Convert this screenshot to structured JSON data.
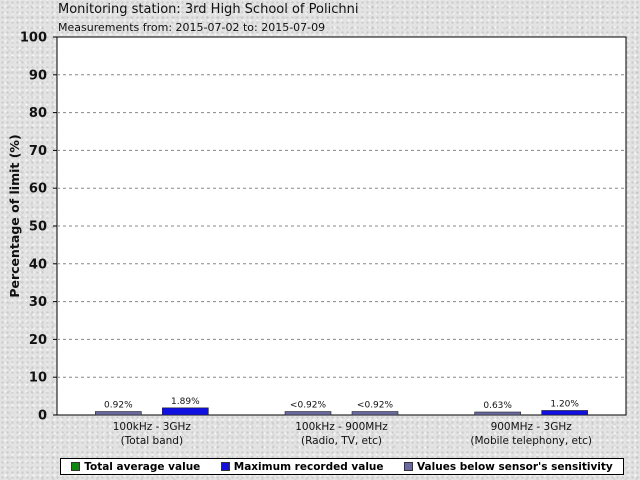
{
  "header": {
    "title": "Monitoring station: 3rd High School of Polichni",
    "subtitle": "Measurements from: 2015-07-02 to: 2015-07-09"
  },
  "chart_data": {
    "type": "bar",
    "title": "Monitoring station: 3rd High School of Polichni",
    "ylabel": "Percentage of limit (%)",
    "xlabel": "",
    "ylim": [
      0,
      100
    ],
    "yticks": [
      0,
      10,
      20,
      30,
      40,
      50,
      60,
      70,
      80,
      90,
      100
    ],
    "grid": true,
    "legend_position": "bottom",
    "categories": [
      [
        "100kHz - 3GHz",
        "(Total band)"
      ],
      [
        "100kHz - 900MHz",
        "(Radio, TV, etc)"
      ],
      [
        "900MHz - 3GHz",
        "(Mobile telephony, etc)"
      ]
    ],
    "series": [
      {
        "name": "Total average value",
        "color": "#0b8a0b",
        "values": [
          0.92,
          0.92,
          0.63
        ]
      },
      {
        "name": "Maximum recorded value",
        "color": "#1010e0",
        "values": [
          1.89,
          0.92,
          1.2
        ]
      },
      {
        "name": "Values below sensor's sensitivity",
        "color": "#6a6aa0",
        "values": null
      }
    ],
    "bars": [
      {
        "category": 0,
        "slot": 0,
        "value": 0.92,
        "label": "0.92%",
        "color": "#6a6aa0"
      },
      {
        "category": 0,
        "slot": 1,
        "value": 1.89,
        "label": "1.89%",
        "color": "#1010e0"
      },
      {
        "category": 1,
        "slot": 0,
        "value": 0.92,
        "label": "<0.92%",
        "color": "#6a6aa0"
      },
      {
        "category": 1,
        "slot": 1,
        "value": 0.92,
        "label": "<0.92%",
        "color": "#6a6aa0"
      },
      {
        "category": 2,
        "slot": 0,
        "value": 0.63,
        "label": "0.63%",
        "color": "#6a6aa0"
      },
      {
        "category": 2,
        "slot": 1,
        "value": 1.2,
        "label": "1.20%",
        "color": "#1010e0"
      }
    ]
  }
}
